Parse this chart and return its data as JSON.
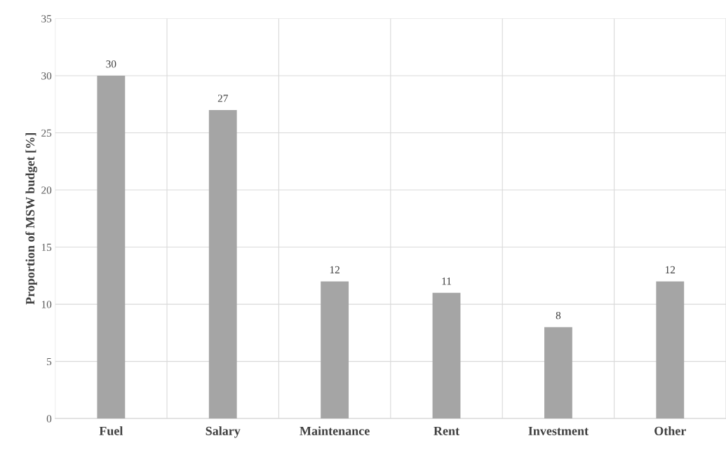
{
  "chart_data": {
    "type": "bar",
    "ylabel": "Proportion of MSW budget [%]",
    "categories": [
      "Fuel",
      "Salary",
      "Maintenance",
      "Rent",
      "Investment",
      "Other"
    ],
    "values": [
      30,
      27,
      12,
      11,
      8,
      12
    ],
    "color": "#a5a5a5",
    "ylim": [
      0,
      35
    ],
    "yticks": [
      0,
      5,
      10,
      15,
      20,
      25,
      30,
      35
    ],
    "grid": true,
    "data_labels": true
  }
}
